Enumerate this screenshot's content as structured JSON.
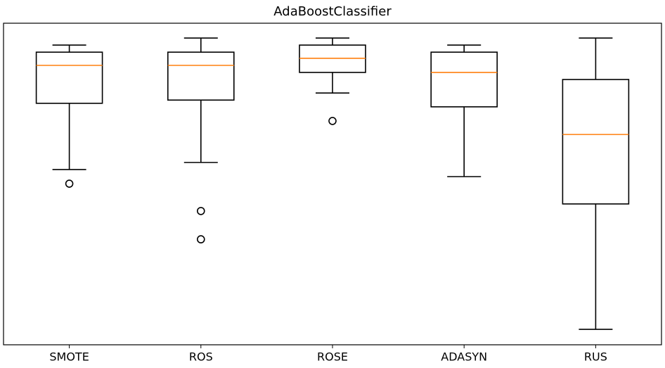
{
  "chart_data": {
    "type": "boxplot",
    "title": "AdaBoostClassifier",
    "categories": [
      "SMOTE",
      "ROS",
      "ROSE",
      "ADASYN",
      "RUS"
    ],
    "boxes": [
      {
        "whislo": 54.5,
        "q1": 75.1,
        "med": 86.9,
        "q3": 91.0,
        "whishi": 93.2,
        "fliers": [
          50.1
        ]
      },
      {
        "whislo": 56.7,
        "q1": 76.1,
        "med": 86.9,
        "q3": 91.0,
        "whishi": 95.4,
        "fliers": [
          41.6,
          32.8
        ]
      },
      {
        "whislo": 78.3,
        "q1": 84.7,
        "med": 89.1,
        "q3": 93.2,
        "whishi": 95.4,
        "fliers": [
          69.6
        ]
      },
      {
        "whislo": 52.3,
        "q1": 74.0,
        "med": 84.7,
        "q3": 91.0,
        "whishi": 93.2,
        "fliers": []
      },
      {
        "whislo": 4.8,
        "q1": 43.8,
        "med": 65.4,
        "q3": 82.5,
        "whishi": 95.4,
        "fliers": []
      }
    ],
    "box_color": "#000000",
    "median_color": "#ff7f0e",
    "ylim": [
      0,
      100
    ]
  }
}
